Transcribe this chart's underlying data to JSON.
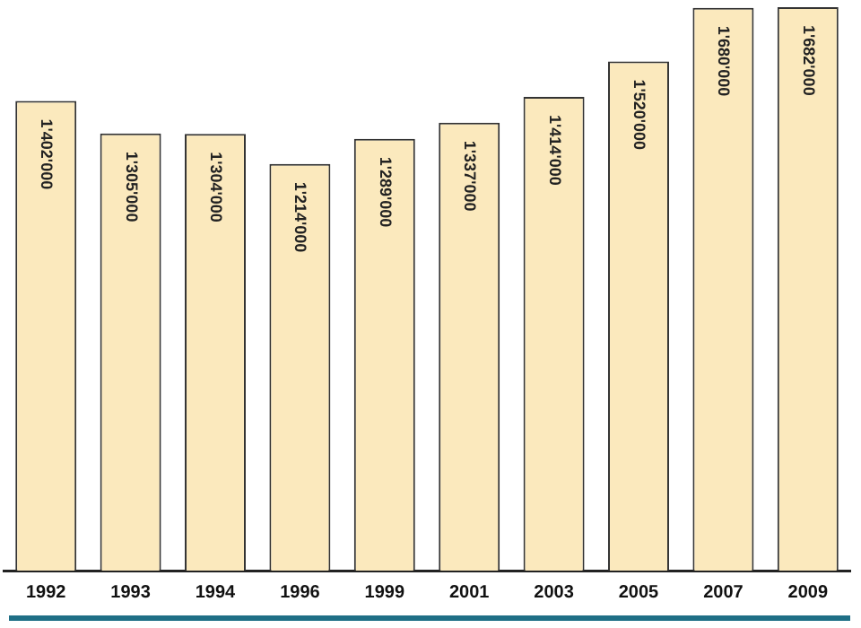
{
  "chart_data": {
    "type": "bar",
    "categories": [
      "1992",
      "1993",
      "1994",
      "1996",
      "1999",
      "2001",
      "2003",
      "2005",
      "2007",
      "2009"
    ],
    "values": [
      1402000,
      1305000,
      1304000,
      1214000,
      1289000,
      1337000,
      1414000,
      1520000,
      1680000,
      1682000
    ],
    "value_labels": [
      "1'402'000",
      "1'305'000",
      "1'304'000",
      "1'214'000",
      "1'289'000",
      "1'337'000",
      "1'414'000",
      "1'520'000",
      "1'680'000",
      "1'682'000"
    ],
    "color": "#fbe9bd",
    "grid": false,
    "legend": false
  }
}
